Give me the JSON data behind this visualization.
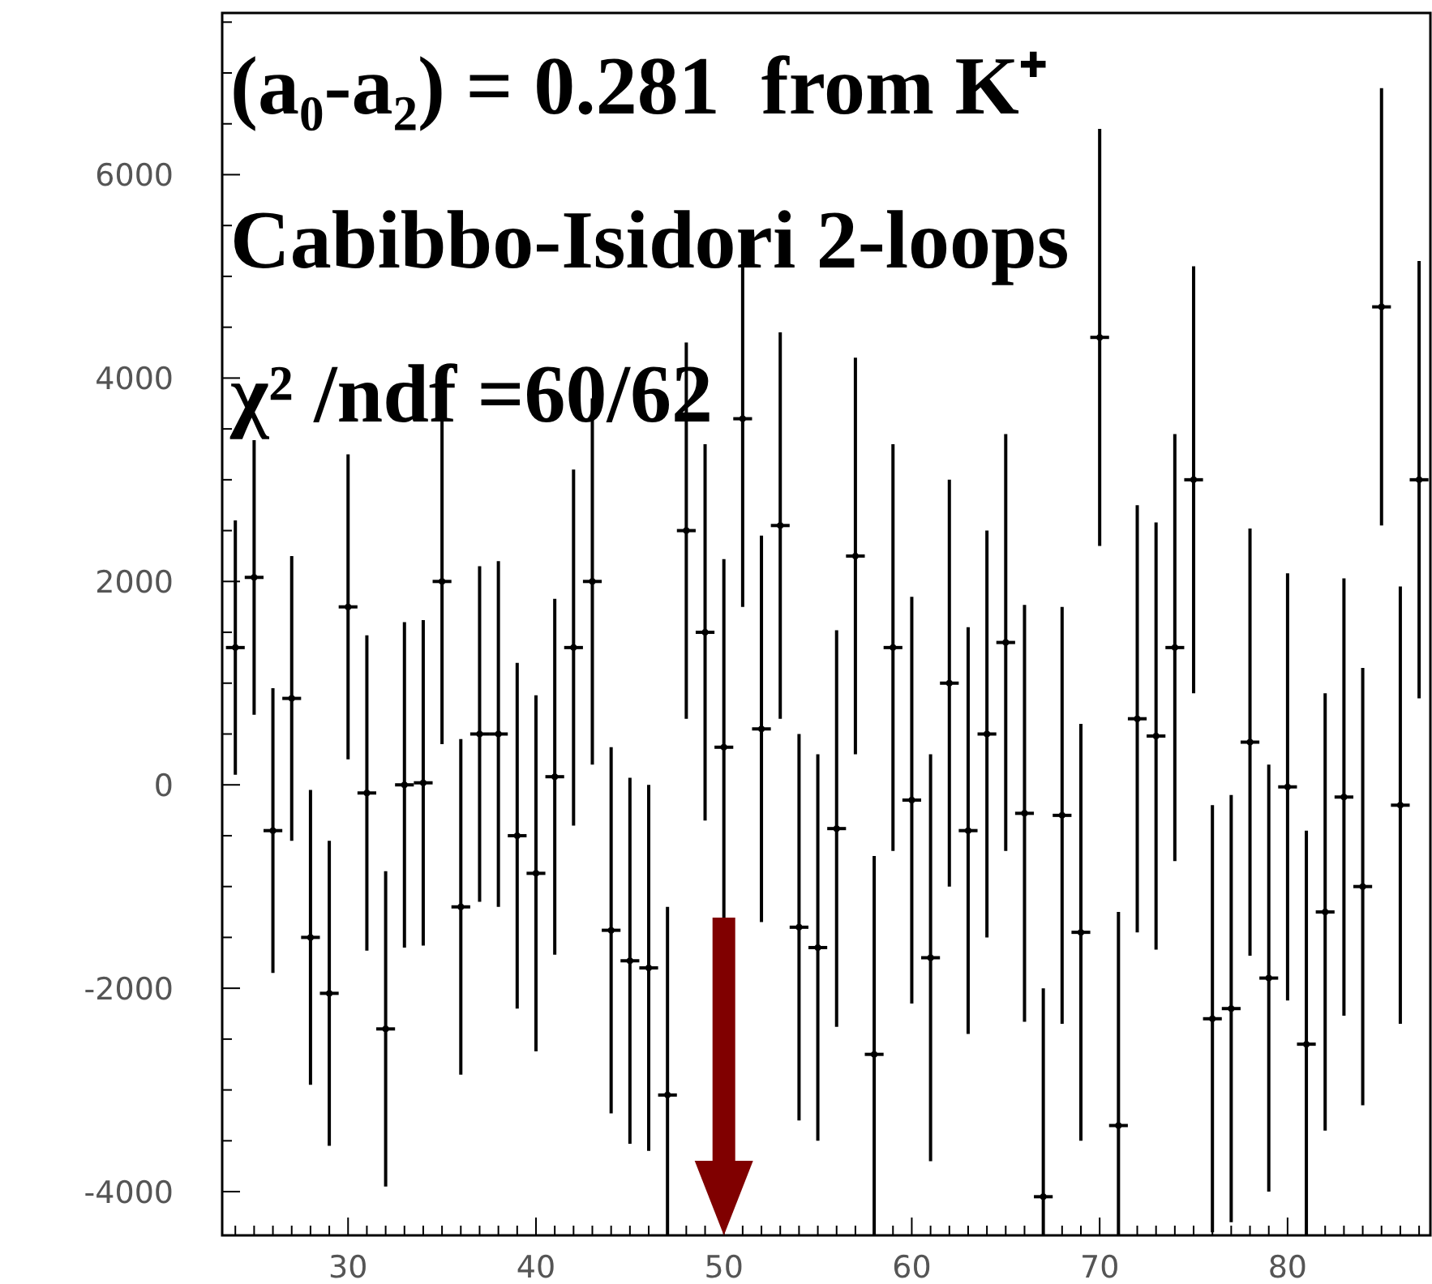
{
  "chart_data": {
    "type": "scatter",
    "color": "#000000",
    "marker": "circle",
    "annotations": [
      "(a₀-a₂) = 0.281  from K⁺",
      "Cabibbo-Isidori 2-loops",
      "χ² /ndf =60/62"
    ],
    "ref_lines": [
      {
        "axis": "x",
        "value": 50,
        "color": "#800000"
      }
    ],
    "x": [
      24,
      25,
      26,
      27,
      28,
      29,
      30,
      31,
      32,
      33,
      34,
      35,
      36,
      37,
      38,
      39,
      40,
      41,
      42,
      43,
      44,
      45,
      46,
      47,
      48,
      49,
      50,
      51,
      52,
      53,
      54,
      55,
      56,
      57,
      58,
      59,
      60,
      61,
      62,
      63,
      64,
      65,
      66,
      67,
      68,
      69,
      70,
      71,
      72,
      73,
      74,
      75,
      76,
      77,
      78,
      79,
      80,
      81,
      82,
      83,
      84,
      85,
      86,
      87
    ],
    "values": [
      1350,
      2040,
      -450,
      850,
      -1500,
      -2050,
      1750,
      -80,
      -2400,
      0,
      20,
      2000,
      -1200,
      500,
      500,
      -500,
      -870,
      80,
      1350,
      2000,
      -1430,
      -1730,
      -1800,
      -3050,
      2500,
      1500,
      370,
      3600,
      550,
      2550,
      -1400,
      -1600,
      -430,
      2250,
      -2650,
      1350,
      -150,
      -1700,
      1000,
      -450,
      500,
      1400,
      -280,
      -4050,
      -300,
      -1450,
      4400,
      -3350,
      650,
      480,
      1350,
      3000,
      -2300,
      -2200,
      420,
      -1900,
      -20,
      -2550,
      -1250,
      -120,
      -1000,
      4700,
      -200,
      3000
    ],
    "errors": [
      1250,
      1350,
      1400,
      1400,
      1450,
      1500,
      1500,
      1550,
      1550,
      1600,
      1600,
      1600,
      1650,
      1650,
      1700,
      1700,
      1750,
      1750,
      1750,
      1800,
      1800,
      1800,
      1800,
      [
        -4430,
        -1200
      ],
      1850,
      1850,
      1850,
      1850,
      1900,
      1900,
      1900,
      1900,
      1950,
      1950,
      [
        -4430,
        -700
      ],
      2000,
      2000,
      2000,
      2000,
      2000,
      2000,
      2050,
      2050,
      [
        -4430,
        -2000
      ],
      2050,
      2050,
      2050,
      [
        -4430,
        -1250
      ],
      2100,
      2100,
      2100,
      2100,
      2100,
      2100,
      2100,
      2100,
      2100,
      [
        -4430,
        -450
      ],
      2150,
      2150,
      2150,
      2150,
      2150,
      2150
    ],
    "xerrors": [
      0.5,
      0.5,
      0.5,
      0.5,
      0.5,
      0.5,
      0.5,
      0.5,
      0.5,
      0.5,
      0.5,
      0.5,
      0.5,
      0.5,
      0.5,
      0.5,
      0.5,
      0.5,
      0.5,
      0.5,
      0.5,
      0.5,
      0.5,
      0.5,
      0.5,
      0.5,
      0.5,
      0.5,
      0.5,
      0.5,
      0.5,
      0.5,
      0.5,
      0.5,
      0.5,
      0.5,
      0.5,
      0.5,
      0.5,
      0.5,
      0.5,
      0.5,
      0.5,
      0.5,
      0.5,
      0.5,
      0.5,
      0.5,
      0.5,
      0.5,
      0.5,
      0.5,
      0.5,
      0.5,
      0.5,
      0.5,
      0.5,
      0.5,
      0.5,
      0.5,
      0.5,
      0.5,
      0.5,
      0.5
    ],
    "xlim": [
      23.3,
      87.6
    ],
    "ylim": [
      -4430,
      7590
    ],
    "xticks": [
      {
        "value": 24,
        "label": null
      },
      {
        "value": 25,
        "label": null
      },
      {
        "value": 26,
        "label": null
      },
      {
        "value": 27,
        "label": null
      },
      {
        "value": 28,
        "label": null
      },
      {
        "value": 29,
        "label": null
      },
      30,
      {
        "value": 31,
        "label": null
      },
      {
        "value": 32,
        "label": null
      },
      {
        "value": 33,
        "label": null
      },
      {
        "value": 34,
        "label": null
      },
      {
        "value": 35,
        "label": null
      },
      {
        "value": 36,
        "label": null
      },
      {
        "value": 37,
        "label": null
      },
      {
        "value": 38,
        "label": null
      },
      {
        "value": 39,
        "label": null
      },
      40,
      {
        "value": 41,
        "label": null
      },
      {
        "value": 42,
        "label": null
      },
      {
        "value": 43,
        "label": null
      },
      {
        "value": 44,
        "label": null
      },
      {
        "value": 45,
        "label": null
      },
      {
        "value": 46,
        "label": null
      },
      {
        "value": 47,
        "label": null
      },
      {
        "value": 48,
        "label": null
      },
      {
        "value": 49,
        "label": null
      },
      50,
      {
        "value": 51,
        "label": null
      },
      {
        "value": 52,
        "label": null
      },
      {
        "value": 53,
        "label": null
      },
      {
        "value": 54,
        "label": null
      },
      {
        "value": 55,
        "label": null
      },
      {
        "value": 56,
        "label": null
      },
      {
        "value": 57,
        "label": null
      },
      {
        "value": 58,
        "label": null
      },
      {
        "value": 59,
        "label": null
      },
      60,
      {
        "value": 61,
        "label": null
      },
      {
        "value": 62,
        "label": null
      },
      {
        "value": 63,
        "label": null
      },
      {
        "value": 64,
        "label": null
      },
      {
        "value": 65,
        "label": null
      },
      {
        "value": 66,
        "label": null
      },
      {
        "value": 67,
        "label": null
      },
      {
        "value": 68,
        "label": null
      },
      {
        "value": 69,
        "label": null
      },
      70,
      {
        "value": 71,
        "label": null
      },
      {
        "value": 72,
        "label": null
      },
      {
        "value": 73,
        "label": null
      },
      {
        "value": 74,
        "label": null
      },
      {
        "value": 75,
        "label": null
      },
      {
        "value": 76,
        "label": null
      },
      {
        "value": 77,
        "label": null
      },
      {
        "value": 78,
        "label": null
      },
      {
        "value": 79,
        "label": null
      },
      80,
      {
        "value": 81,
        "label": null
      },
      {
        "value": 82,
        "label": null
      },
      {
        "value": 83,
        "label": null
      },
      {
        "value": 84,
        "label": null
      },
      {
        "value": 85,
        "label": null
      },
      {
        "value": 86,
        "label": null
      },
      {
        "value": 87,
        "label": null
      }
    ],
    "yticks": [
      -4000,
      {
        "value": -3500,
        "label": null
      },
      {
        "value": -3000,
        "label": null
      },
      {
        "value": -2500,
        "label": null
      },
      -2000,
      {
        "value": -1500,
        "label": null
      },
      {
        "value": -1000,
        "label": null
      },
      {
        "value": -500,
        "label": null
      },
      0,
      {
        "value": 500,
        "label": null
      },
      {
        "value": 1000,
        "label": null
      },
      {
        "value": 1500,
        "label": null
      },
      2000,
      {
        "value": 2500,
        "label": null
      },
      {
        "value": 3000,
        "label": null
      },
      {
        "value": 3500,
        "label": null
      },
      4000,
      {
        "value": 4500,
        "label": null
      },
      {
        "value": 5000,
        "label": null
      },
      {
        "value": 5500,
        "label": null
      },
      6000,
      {
        "value": 6500,
        "label": null
      },
      {
        "value": 7000,
        "label": null
      },
      {
        "value": 7500,
        "label": null
      }
    ]
  }
}
